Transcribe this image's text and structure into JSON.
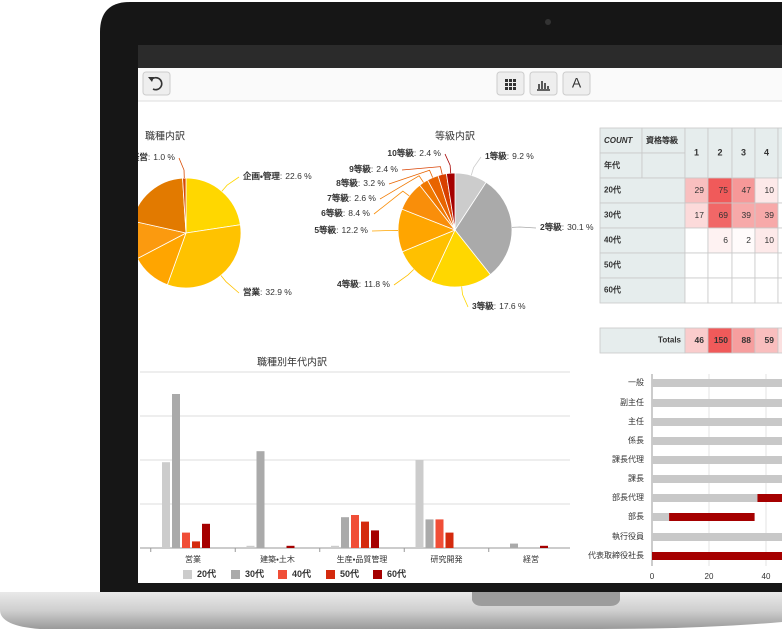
{
  "toolbar": {
    "font_button": "A"
  },
  "chart_data": [
    {
      "type": "pie",
      "title": "職種内訳",
      "categories": [
        "企画・管理",
        "営業",
        null,
        null,
        null,
        "経営"
      ],
      "values": [
        22.6,
        32.9,
        11.8,
        11.2,
        20.5,
        1.0
      ],
      "value_labels": [
        "22.6 %",
        "32.9 %",
        null,
        null,
        null,
        "1.0 %"
      ],
      "label_separator": ":",
      "colors": [
        "#ffd700",
        "#ffc200",
        "#ffa500",
        "#fb9a0f",
        "#e27a00",
        "#d94a00"
      ]
    },
    {
      "type": "pie",
      "title": "等級内訳",
      "categories": [
        "1等級",
        "2等級",
        "3等級",
        "4等級",
        "5等級",
        "6等級",
        "7等級",
        "8等級",
        "9等級",
        "10等級"
      ],
      "values": [
        9.2,
        30.1,
        17.6,
        11.8,
        12.2,
        8.4,
        2.6,
        3.2,
        2.4,
        2.4
      ],
      "value_labels": [
        "9.2 %",
        "30.1 %",
        "17.6 %",
        "11.8 %",
        "12.2 %",
        "8.4 %",
        "2.6 %",
        "3.2 %",
        "2.4 %",
        "2.4 %"
      ],
      "label_separator": ":",
      "colors": [
        "#cccccc",
        "#aaaaaa",
        "#ffd700",
        "#ffc000",
        "#ffa500",
        "#f98e0a",
        "#f07800",
        "#e86400",
        "#d84000",
        "#a50000"
      ]
    },
    {
      "type": "bar",
      "title": "職種別年代内訳",
      "categories": [
        "営業",
        "建築・土木",
        "生産・品質管理",
        "研究開発",
        "経営"
      ],
      "series": [
        {
          "name": "20代",
          "color": "#cccccc",
          "values": [
            39,
            1,
            1,
            40,
            0
          ]
        },
        {
          "name": "30代",
          "color": "#aaaaaa",
          "values": [
            70,
            44,
            14,
            13,
            2
          ]
        },
        {
          "name": "40代",
          "color": "#f04e37",
          "values": [
            7,
            0,
            15,
            13,
            0
          ]
        },
        {
          "name": "50代",
          "color": "#d42a0e",
          "values": [
            3,
            0,
            12,
            7,
            0
          ]
        },
        {
          "name": "60代",
          "color": "#a50000",
          "values": [
            11,
            1,
            8,
            0,
            1
          ]
        }
      ],
      "ylim": [
        0,
        80
      ],
      "yticks": [
        0,
        20,
        40,
        60,
        80
      ],
      "grid": true,
      "legend": "bottom"
    },
    {
      "type": "hbar",
      "categories": [
        "一般",
        "副主任",
        "主任",
        "係長",
        "課長代理",
        "課長",
        "部長代理",
        "部長",
        "執行役員",
        "代表取締役社長"
      ],
      "series": [
        {
          "color": "#c8c8c8",
          "values": [
            50,
            50,
            50,
            50,
            50,
            50,
            37,
            6,
            50,
            0
          ]
        },
        {
          "color": "#a50000",
          "values": [
            0,
            0,
            0,
            0,
            0,
            0,
            20,
            30,
            0,
            50
          ]
        }
      ],
      "stacked": true,
      "xlim": [
        0,
        100
      ],
      "xticks": [
        0,
        20,
        40,
        60,
        80,
        100
      ],
      "grid": true
    }
  ],
  "pivot_table": {
    "corner": "COUNT",
    "column_header": "資格等級",
    "row_header": "年代",
    "columns": [
      1,
      2,
      3,
      4
    ],
    "rows": [
      {
        "label": "20代",
        "cells": [
          29,
          75,
          47,
          10
        ]
      },
      {
        "label": "30代",
        "cells": [
          17,
          69,
          39,
          39
        ]
      },
      {
        "label": "40代",
        "cells": [
          null,
          6,
          2,
          10
        ]
      },
      {
        "label": "50代",
        "cells": [
          null,
          null,
          null,
          null
        ]
      },
      {
        "label": "60代",
        "cells": [
          null,
          null,
          null,
          null
        ]
      }
    ],
    "totals_label": "Totals",
    "totals": [
      46,
      150,
      88,
      59
    ]
  }
}
